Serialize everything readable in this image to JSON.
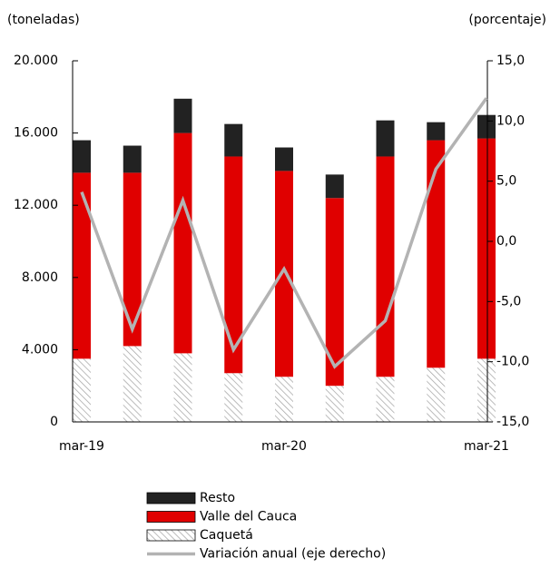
{
  "chart_data": {
    "type": "bar",
    "stacked": true,
    "y_label": "(toneladas)",
    "y2_label": "(porcentaje)",
    "categories": [
      "mar-19",
      null,
      null,
      null,
      "mar-20",
      null,
      null,
      null,
      "mar-21"
    ],
    "series": [
      {
        "name": "Caquetá",
        "color": "#a6a6a6",
        "pattern": "hatch",
        "values": [
          3500,
          4200,
          3800,
          2700,
          2500,
          2000,
          2500,
          3000,
          3500
        ]
      },
      {
        "name": "Valle del Cauca",
        "color": "#e00000",
        "values": [
          10300,
          9600,
          12200,
          12000,
          11400,
          10400,
          12200,
          12600,
          12200
        ]
      },
      {
        "name": "Resto",
        "color": "#222222",
        "values": [
          1800,
          1500,
          1900,
          1800,
          1300,
          1300,
          2000,
          1000,
          1300
        ]
      },
      {
        "name": "Variación anual (eje derecho)",
        "type": "line",
        "axis": "y2",
        "color": "#b3b3b3",
        "values": [
          4.1,
          -7.3,
          3.4,
          -9.0,
          -2.3,
          -10.4,
          -6.6,
          6.0,
          11.9
        ]
      }
    ],
    "ylim": [
      0,
      20000
    ],
    "yticks": [
      0,
      {
        "value": 4000,
        "label": "4.000"
      },
      {
        "value": 8000,
        "label": "8.000"
      },
      {
        "value": 12000,
        "label": "12.000"
      },
      {
        "value": 16000,
        "label": "16.000"
      },
      {
        "value": 20000,
        "label": "20.000"
      }
    ],
    "y2lim": [
      -15,
      15
    ],
    "y2ticks": [
      {
        "value": -15,
        "label": "-15,0"
      },
      {
        "value": -10,
        "label": "-10,0"
      },
      {
        "value": -5,
        "label": "-5,0"
      },
      {
        "value": 0,
        "label": "0,0"
      },
      {
        "value": 5,
        "label": "5,0"
      },
      {
        "value": 10,
        "label": "10,0"
      },
      {
        "value": 15,
        "label": "15,0"
      }
    ],
    "grid": false,
    "legend": "bottom"
  }
}
